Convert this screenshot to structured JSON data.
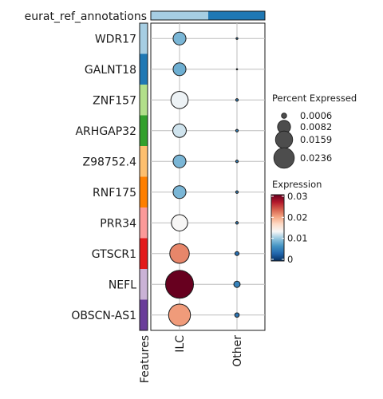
{
  "chart_data": {
    "type": "dotplot",
    "annotation_title": "eurat_ref_annotations",
    "annotation_colors": [
      "#a6cee3",
      "#1f78b4"
    ],
    "x_categories": [
      "ILC",
      "Other"
    ],
    "x_feature_label": "Features",
    "features": [
      "WDR17",
      "GALNT18",
      "ZNF157",
      "ARHGAP32",
      "Z98752.4",
      "RNF175",
      "PRR34",
      "GTSCR1",
      "NEFL",
      "OBSCN-AS1"
    ],
    "feature_colors": [
      "#a6cee3",
      "#1f78b4",
      "#b2df8a",
      "#33a02c",
      "#fdbf6f",
      "#ff7f00",
      "#fb9a99",
      "#e31a1c",
      "#cab2d6",
      "#6a3d9a"
    ],
    "percent_expressed": [
      [
        0.005,
        0.0001
      ],
      [
        0.005,
        5e-05
      ],
      [
        0.009,
        0.0002
      ],
      [
        0.0055,
        0.0002
      ],
      [
        0.005,
        0.0002
      ],
      [
        0.005,
        0.0002
      ],
      [
        0.008,
        0.0002
      ],
      [
        0.0115,
        0.0005
      ],
      [
        0.0236,
        0.0012
      ],
      [
        0.0145,
        0.0006
      ]
    ],
    "expression": [
      [
        0.009,
        0.005
      ],
      [
        0.0085,
        0.005
      ],
      [
        0.013,
        0.005
      ],
      [
        0.012,
        0.005
      ],
      [
        0.009,
        0.005
      ],
      [
        0.009,
        0.005
      ],
      [
        0.0135,
        0.005
      ],
      [
        0.0215,
        0.004
      ],
      [
        0.03,
        0.0055
      ],
      [
        0.0205,
        0.0045
      ]
    ],
    "size_legend": {
      "title": "Percent Expressed",
      "values": [
        0.0006,
        0.0082,
        0.0159,
        0.0236
      ],
      "labels": [
        "0.0006",
        "0.0082",
        "0.0159",
        "0.0236"
      ]
    },
    "color_legend": {
      "title": "Expression",
      "range": [
        0,
        0.03
      ],
      "ticks": [
        0,
        0.01,
        0.02,
        0.03
      ],
      "labels": [
        "0",
        "0.01",
        "0.02",
        "0.03"
      ],
      "colors": [
        "#053061",
        "#2166ac",
        "#4393c3",
        "#92c5de",
        "#f7f7f7",
        "#fddbc7",
        "#f4a582",
        "#d6604d",
        "#b2182b",
        "#67001f"
      ]
    },
    "grid": true
  }
}
